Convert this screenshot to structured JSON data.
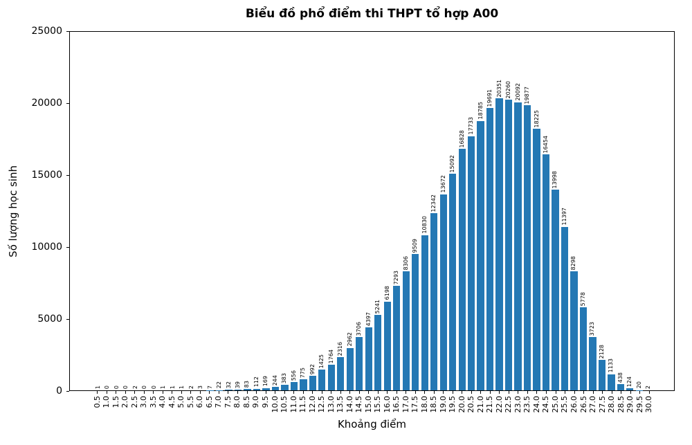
{
  "chart_data": {
    "type": "bar",
    "title": "Biểu đồ phổ điểm thi THPT tổ hợp A00",
    "xlabel": "Khoảng điểm",
    "ylabel": "Số lượng học sinh",
    "ylim": [
      0,
      25000
    ],
    "yticks": [
      0,
      5000,
      10000,
      15000,
      20000,
      25000
    ],
    "bar_color": "#2478b4",
    "legend": "none",
    "grid": "off",
    "categories": [
      "0.5",
      "1.0",
      "1.5",
      "2.0",
      "2.5",
      "3.0",
      "3.5",
      "4.0",
      "4.5",
      "5.0",
      "5.5",
      "6.0",
      "6.5",
      "7.0",
      "7.5",
      "8.0",
      "8.5",
      "9.0",
      "9.5",
      "10.0",
      "10.5",
      "11.0",
      "11.5",
      "12.0",
      "12.5",
      "13.0",
      "13.5",
      "14.0",
      "14.5",
      "15.0",
      "15.5",
      "16.0",
      "16.5",
      "17.0",
      "17.5",
      "18.0",
      "18.5",
      "19.0",
      "19.5",
      "20.0",
      "20.5",
      "21.0",
      "21.5",
      "22.0",
      "22.5",
      "23.0",
      "23.5",
      "24.0",
      "24.5",
      "25.0",
      "25.5",
      "26.0",
      "26.5",
      "27.0",
      "27.5",
      "28.0",
      "28.5",
      "29.0",
      "29.5",
      "30.0"
    ],
    "values": [
      1,
      0,
      0,
      0,
      2,
      0,
      0,
      1,
      1,
      1,
      2,
      3,
      7,
      22,
      32,
      39,
      83,
      112,
      169,
      244,
      383,
      556,
      775,
      992,
      1425,
      1764,
      2316,
      2962,
      3706,
      4397,
      5241,
      6198,
      7293,
      8306,
      9509,
      10830,
      12342,
      13672,
      15092,
      16828,
      17733,
      18785,
      19691,
      20351,
      20260,
      20092,
      19877,
      18225,
      16454,
      13998,
      11397,
      8298,
      5778,
      3723,
      2128,
      1133,
      438,
      124,
      20,
      2
    ]
  }
}
